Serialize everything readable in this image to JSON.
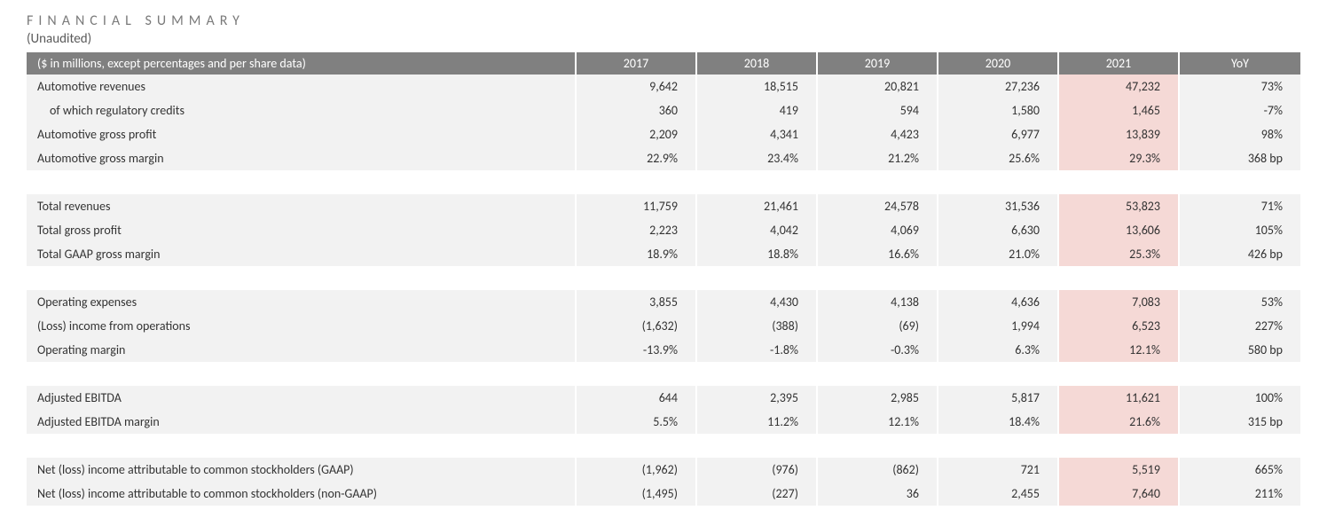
{
  "header": {
    "title": "FINANCIAL SUMMARY",
    "subtitle": "(Unaudited)"
  },
  "table": {
    "columns": [
      "($ in millions, except percentages and per share data)",
      "2017",
      "2018",
      "2019",
      "2020",
      "2021",
      "YoY"
    ],
    "highlight_col_index": 5,
    "colors": {
      "header_bg": "#808080",
      "header_text": "#ffffff",
      "row_bg": "#f2f2f2",
      "highlight_bg": "#f5d9d6",
      "spacer_bg": "#ffffff",
      "text": "#333333"
    },
    "groups": [
      {
        "rows": [
          {
            "label": "Automotive revenues",
            "cells": [
              "9,642",
              "18,515",
              "20,821",
              "27,236",
              "47,232",
              "73%"
            ]
          },
          {
            "label": "of which regulatory credits",
            "indent": true,
            "cells": [
              "360",
              "419",
              "594",
              "1,580",
              "1,465",
              "-7%"
            ]
          },
          {
            "label": "Automotive gross profit",
            "cells": [
              "2,209",
              "4,341",
              "4,423",
              "6,977",
              "13,839",
              "98%"
            ]
          },
          {
            "label": "Automotive gross margin",
            "cells": [
              "22.9%",
              "23.4%",
              "21.2%",
              "25.6%",
              "29.3%",
              "368 bp"
            ]
          }
        ]
      },
      {
        "rows": [
          {
            "label": "Total revenues",
            "cells": [
              "11,759",
              "21,461",
              "24,578",
              "31,536",
              "53,823",
              "71%"
            ]
          },
          {
            "label": "Total gross profit",
            "cells": [
              "2,223",
              "4,042",
              "4,069",
              "6,630",
              "13,606",
              "105%"
            ]
          },
          {
            "label": "Total GAAP gross margin",
            "cells": [
              "18.9%",
              "18.8%",
              "16.6%",
              "21.0%",
              "25.3%",
              "426 bp"
            ]
          }
        ]
      },
      {
        "rows": [
          {
            "label": "Operating expenses",
            "cells": [
              "3,855",
              "4,430",
              "4,138",
              "4,636",
              "7,083",
              "53%"
            ]
          },
          {
            "label": "(Loss) income from operations",
            "cells": [
              "(1,632)",
              "(388)",
              "(69)",
              "1,994",
              "6,523",
              "227%"
            ]
          },
          {
            "label": "Operating margin",
            "cells": [
              "-13.9%",
              "-1.8%",
              "-0.3%",
              "6.3%",
              "12.1%",
              "580 bp"
            ]
          }
        ]
      },
      {
        "rows": [
          {
            "label": "Adjusted EBITDA",
            "cells": [
              "644",
              "2,395",
              "2,985",
              "5,817",
              "11,621",
              "100%"
            ]
          },
          {
            "label": "Adjusted EBITDA margin",
            "cells": [
              "5.5%",
              "11.2%",
              "12.1%",
              "18.4%",
              "21.6%",
              "315 bp"
            ]
          }
        ]
      },
      {
        "rows": [
          {
            "label": "Net (loss) income attributable to common stockholders (GAAP)",
            "cells": [
              "(1,962)",
              "(976)",
              "(862)",
              "721",
              "5,519",
              "665%"
            ]
          },
          {
            "label": "Net (loss) income attributable to common stockholders (non-GAAP)",
            "cells": [
              "(1,495)",
              "(227)",
              "36",
              "2,455",
              "7,640",
              "211%"
            ]
          }
        ]
      }
    ]
  }
}
